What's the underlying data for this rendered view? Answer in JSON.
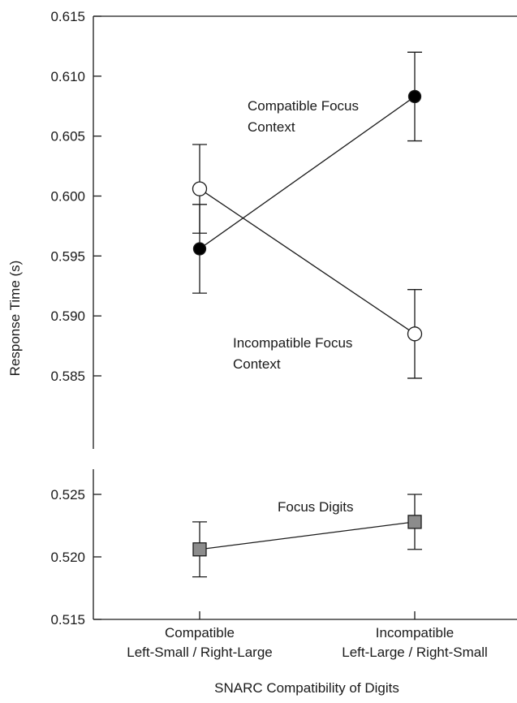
{
  "chart_data": {
    "type": "line",
    "xlabel": "SNARC Compatibility of Digits",
    "ylabel": "Response Time (s)",
    "categories": [
      [
        "Compatible",
        "Left-Small / Right-Large"
      ],
      [
        "Incompatible",
        "Left-Large / Right-Small"
      ]
    ],
    "panels": [
      {
        "ylim": [
          0.58,
          0.615
        ],
        "yticks": [
          "0.585",
          "0.590",
          "0.595",
          "0.600",
          "0.605",
          "0.610",
          "0.615"
        ],
        "series": [
          {
            "name": "Compatible Focus Context",
            "marker": "filled-circle",
            "values": [
              0.5956,
              0.6083
            ],
            "error_low": [
              0.5919,
              0.6046
            ],
            "error_high": [
              0.5993,
              0.612
            ]
          },
          {
            "name": "Incompatible Focus Context",
            "marker": "open-circle",
            "values": [
              0.6006,
              0.5885
            ],
            "error_low": [
              0.5969,
              0.5848
            ],
            "error_high": [
              0.6043,
              0.5922
            ]
          }
        ]
      },
      {
        "ylim": [
          0.515,
          0.527
        ],
        "yticks": [
          "0.515",
          "0.520",
          "0.525"
        ],
        "series": [
          {
            "name": "Focus Digits",
            "marker": "gray-square",
            "values": [
              0.5206,
              0.5228
            ],
            "error_low": [
              0.5184,
              0.5206
            ],
            "error_high": [
              0.5228,
              0.525
            ]
          }
        ]
      }
    ],
    "annotations": {
      "compatible_context": [
        "Compatible Focus",
        "Context"
      ],
      "incompatible_context": [
        "Incompatible Focus",
        "Context"
      ],
      "focus_digits": [
        "Focus Digits"
      ]
    },
    "colors": {
      "line": "#1a1a1a",
      "filled_marker": "#000000",
      "open_marker": "#ffffff",
      "square_marker": "#8c8c8c"
    }
  }
}
